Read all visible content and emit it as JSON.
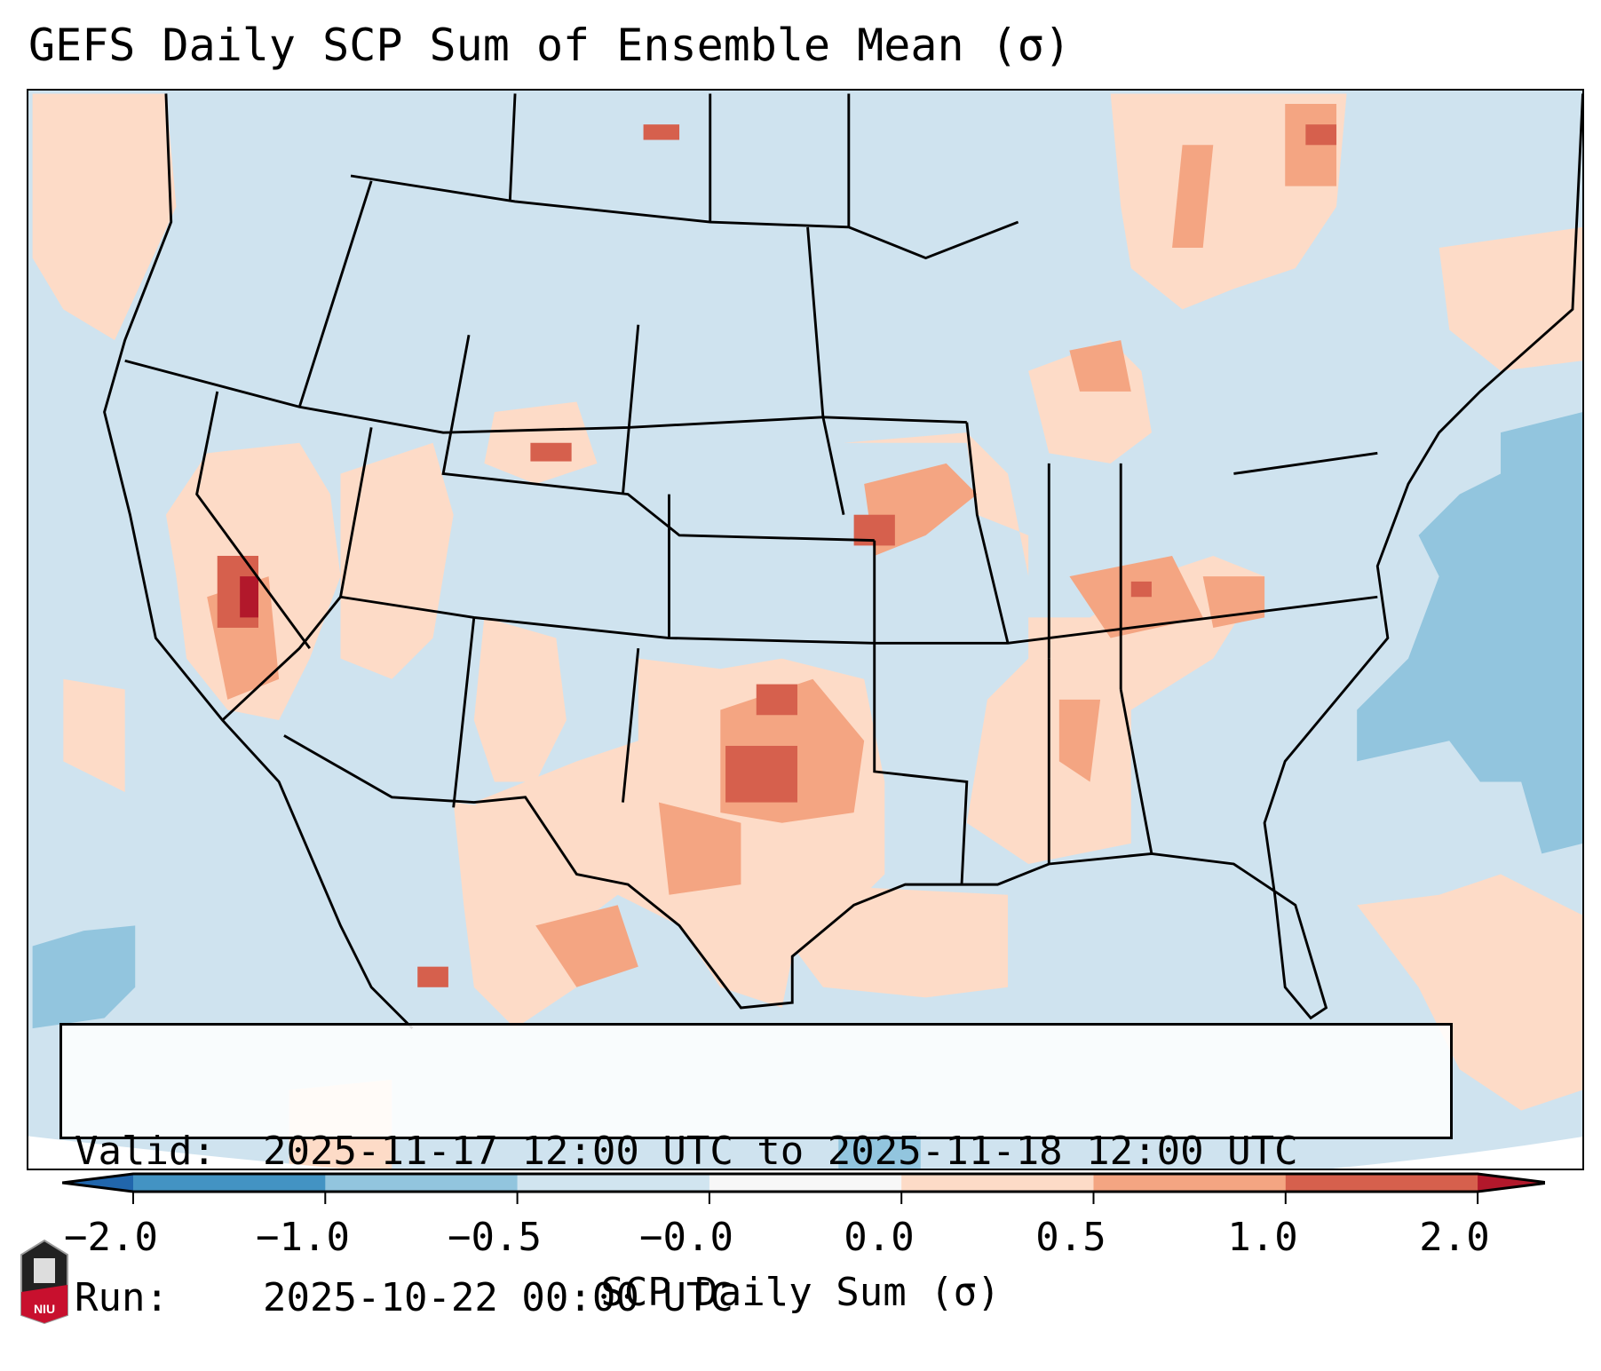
{
  "title": "GEFS Daily SCP Sum of Ensemble Mean (σ)",
  "info": {
    "valid_label": "Valid:",
    "valid_value": "2025-11-17 12:00 UTC to 2025-11-18 12:00 UTC",
    "run_label": "Run:",
    "run_value": "2025-10-22 00:00 UTC"
  },
  "colorbar": {
    "label": "SCP Daily Sum (σ)",
    "ticks": [
      "−2.0",
      "−1.0",
      "−0.5",
      "−0.0",
      "0.0",
      "0.5",
      "1.0",
      "2.0"
    ],
    "colors": [
      "#2166ac",
      "#4393c3",
      "#92c5de",
      "#d1e5f0",
      "#f7f7f7",
      "#fddbc7",
      "#f4a582",
      "#d6604d",
      "#b2182b"
    ],
    "extend": "both"
  },
  "logo": {
    "text": "NIU"
  }
}
